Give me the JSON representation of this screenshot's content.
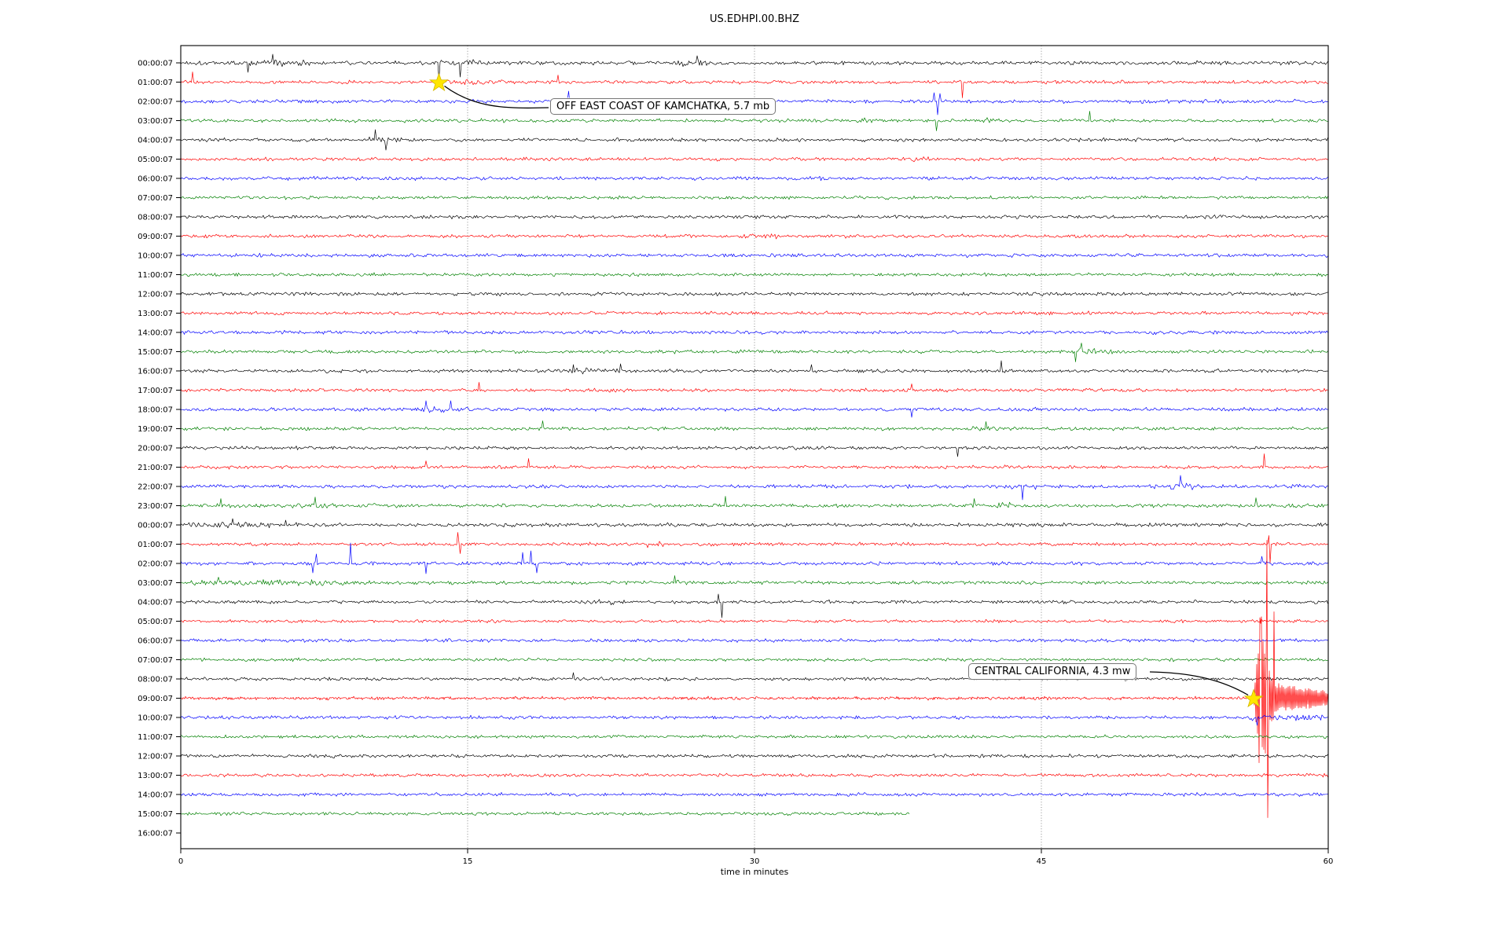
{
  "figure": {
    "title": "US.EDHPI.00.BHZ",
    "xlabel": "time in minutes"
  },
  "chart_data": {
    "type": "line",
    "subtype": "seismogram-dayplot",
    "title": "US.EDHPI.00.BHZ",
    "xlabel": "time in minutes",
    "ylabel": "",
    "xlim": [
      0,
      60
    ],
    "x_ticks": [
      0,
      15,
      30,
      45,
      60
    ],
    "grid": {
      "vertical_minutes": [
        15,
        30,
        45
      ],
      "style": "dotted",
      "color": "#6e6e6e"
    },
    "trace_color_cycle": [
      "#000000",
      "#ff0000",
      "#0000ff",
      "#008000"
    ],
    "rows": [
      {
        "label": "00:00:07",
        "color": "#000000",
        "end_minute": 60,
        "amp": 3.4,
        "bursts": [
          [
            2,
            7,
            4.2
          ],
          [
            13,
            16,
            3.8
          ],
          [
            25.5,
            28,
            4
          ]
        ],
        "spikes": [
          [
            3.5,
            -12
          ],
          [
            4.8,
            11
          ],
          [
            13.5,
            -22
          ],
          [
            14.6,
            -18
          ],
          [
            27,
            9
          ]
        ]
      },
      {
        "label": "01:00:07",
        "color": "#ff0000",
        "end_minute": 60,
        "amp": 3.0,
        "bursts": [
          [
            13.5,
            17.5,
            3.4
          ]
        ],
        "spikes": [
          [
            0.6,
            13
          ],
          [
            19.7,
            9
          ],
          [
            40.85,
            -20
          ]
        ]
      },
      {
        "label": "02:00:07",
        "color": "#0000ff",
        "end_minute": 60,
        "amp": 3.2,
        "bursts": [],
        "spikes": [
          [
            20.3,
            13
          ],
          [
            39.4,
            11
          ],
          [
            39.55,
            -17
          ],
          [
            39.7,
            10
          ]
        ]
      },
      {
        "label": "03:00:07",
        "color": "#008000",
        "end_minute": 60,
        "amp": 3.0,
        "bursts": [
          [
            34.5,
            36.5,
            3.8
          ],
          [
            41.8,
            43.8,
            4.4
          ]
        ],
        "spikes": [
          [
            39.5,
            -13
          ],
          [
            47.5,
            12
          ]
        ]
      },
      {
        "label": "04:00:07",
        "color": "#000000",
        "end_minute": 60,
        "amp": 3.0,
        "bursts": [
          [
            9.5,
            11.8,
            5.2
          ]
        ],
        "spikes": [
          [
            10.2,
            13
          ],
          [
            10.7,
            -13
          ]
        ]
      },
      {
        "label": "05:00:07",
        "color": "#ff0000",
        "end_minute": 60,
        "amp": 2.9,
        "bursts": [
          [
            38,
            39.5,
            3.4
          ]
        ],
        "spikes": []
      },
      {
        "label": "06:00:07",
        "color": "#0000ff",
        "end_minute": 60,
        "amp": 3.1,
        "bursts": [],
        "spikes": []
      },
      {
        "label": "07:00:07",
        "color": "#008000",
        "end_minute": 60,
        "amp": 2.9,
        "bursts": [],
        "spikes": []
      },
      {
        "label": "08:00:07",
        "color": "#000000",
        "end_minute": 60,
        "amp": 3.0,
        "bursts": [],
        "spikes": []
      },
      {
        "label": "09:00:07",
        "color": "#ff0000",
        "end_minute": 60,
        "amp": 2.9,
        "bursts": [
          [
            29,
            31.5,
            3.3
          ]
        ],
        "spikes": []
      },
      {
        "label": "10:00:07",
        "color": "#0000ff",
        "end_minute": 60,
        "amp": 3.1,
        "bursts": [],
        "spikes": []
      },
      {
        "label": "11:00:07",
        "color": "#008000",
        "end_minute": 60,
        "amp": 2.8,
        "bursts": [],
        "spikes": []
      },
      {
        "label": "12:00:07",
        "color": "#000000",
        "end_minute": 60,
        "amp": 2.9,
        "bursts": [],
        "spikes": []
      },
      {
        "label": "13:00:07",
        "color": "#ff0000",
        "end_minute": 60,
        "amp": 2.9,
        "bursts": [],
        "spikes": []
      },
      {
        "label": "14:00:07",
        "color": "#0000ff",
        "end_minute": 60,
        "amp": 3.0,
        "bursts": [],
        "spikes": []
      },
      {
        "label": "15:00:07",
        "color": "#008000",
        "end_minute": 60,
        "amp": 2.9,
        "bursts": [
          [
            46.3,
            49,
            5.6
          ]
        ],
        "spikes": [
          [
            46.8,
            -13
          ],
          [
            47.1,
            11
          ]
        ]
      },
      {
        "label": "16:00:07",
        "color": "#000000",
        "end_minute": 60,
        "amp": 3.0,
        "bursts": [
          [
            20,
            24,
            3.6
          ]
        ],
        "spikes": [
          [
            20.5,
            8
          ],
          [
            23,
            9
          ],
          [
            33,
            8
          ],
          [
            42.9,
            13
          ]
        ]
      },
      {
        "label": "17:00:07",
        "color": "#ff0000",
        "end_minute": 60,
        "amp": 2.9,
        "bursts": [],
        "spikes": [
          [
            15.6,
            10
          ],
          [
            38.2,
            8
          ]
        ]
      },
      {
        "label": "18:00:07",
        "color": "#0000ff",
        "end_minute": 60,
        "amp": 3.1,
        "bursts": [
          [
            12,
            15.5,
            4.6
          ]
        ],
        "spikes": [
          [
            12.8,
            11
          ],
          [
            14.1,
            11
          ],
          [
            38.2,
            -10
          ]
        ]
      },
      {
        "label": "19:00:07",
        "color": "#008000",
        "end_minute": 60,
        "amp": 2.9,
        "bursts": [
          [
            41,
            44,
            3.5
          ]
        ],
        "spikes": [
          [
            18.9,
            10
          ],
          [
            42.1,
            9
          ]
        ]
      },
      {
        "label": "20:00:07",
        "color": "#000000",
        "end_minute": 60,
        "amp": 2.9,
        "bursts": [],
        "spikes": [
          [
            40.6,
            -11
          ]
        ]
      },
      {
        "label": "21:00:07",
        "color": "#ff0000",
        "end_minute": 60,
        "amp": 2.9,
        "bursts": [],
        "spikes": [
          [
            12.8,
            8
          ],
          [
            18.2,
            11
          ],
          [
            56.63,
            17
          ]
        ]
      },
      {
        "label": "22:00:07",
        "color": "#0000ff",
        "end_minute": 60,
        "amp": 3.1,
        "bursts": [
          [
            43,
            45,
            3.8
          ],
          [
            51.5,
            53.5,
            5.4
          ],
          [
            57.8,
            58.8,
            4.5
          ]
        ],
        "spikes": [
          [
            44,
            -17
          ],
          [
            52.3,
            14
          ]
        ]
      },
      {
        "label": "23:00:07",
        "color": "#008000",
        "end_minute": 60,
        "amp": 3.1,
        "bursts": [
          [
            5.5,
            8,
            3.8
          ],
          [
            41,
            44,
            4
          ]
        ],
        "spikes": [
          [
            2.1,
            9
          ],
          [
            7,
            11
          ],
          [
            28.5,
            12
          ],
          [
            41.5,
            9
          ],
          [
            56.2,
            10
          ]
        ]
      },
      {
        "label": "00:00:07",
        "color": "#000000",
        "end_minute": 60,
        "amp": 3.3,
        "bursts": [
          [
            0,
            5,
            4.2
          ]
        ],
        "spikes": [
          [
            2.7,
            8
          ],
          [
            5.5,
            6
          ]
        ]
      },
      {
        "label": "01:00:07",
        "color": "#ff0000",
        "end_minute": 60,
        "amp": 2.9,
        "bursts": [
          [
            24,
            25.5,
            5
          ]
        ],
        "spikes": [
          [
            14.5,
            15
          ],
          [
            14.62,
            -12
          ],
          [
            56.9,
            11
          ],
          [
            56.95,
            -24
          ]
        ]
      },
      {
        "label": "02:00:07",
        "color": "#0000ff",
        "end_minute": 60,
        "amp": 3.1,
        "bursts": [
          [
            17.5,
            19,
            3.6
          ]
        ],
        "spikes": [
          [
            6.9,
            -12
          ],
          [
            7.1,
            12
          ],
          [
            8.9,
            26
          ],
          [
            12.8,
            -13
          ],
          [
            17.9,
            14
          ],
          [
            18.3,
            16
          ],
          [
            18.6,
            -12
          ],
          [
            56.5,
            9
          ]
        ]
      },
      {
        "label": "03:00:07",
        "color": "#008000",
        "end_minute": 60,
        "amp": 3.0,
        "bursts": [
          [
            0,
            10,
            4.4
          ],
          [
            24,
            26.5,
            3.6
          ]
        ],
        "spikes": [
          [
            2,
            7
          ],
          [
            25.8,
            9
          ]
        ]
      },
      {
        "label": "04:00:07",
        "color": "#000000",
        "end_minute": 60,
        "amp": 2.9,
        "bursts": [
          [
            21,
            23,
            4.2
          ]
        ],
        "spikes": [
          [
            28.1,
            10
          ],
          [
            28.3,
            -20
          ]
        ]
      },
      {
        "label": "05:00:07",
        "color": "#ff0000",
        "end_minute": 60,
        "amp": 2.7,
        "bursts": [],
        "spikes": []
      },
      {
        "label": "06:00:07",
        "color": "#0000ff",
        "end_minute": 60,
        "amp": 2.9,
        "bursts": [],
        "spikes": []
      },
      {
        "label": "07:00:07",
        "color": "#008000",
        "end_minute": 60,
        "amp": 2.7,
        "bursts": [],
        "spikes": []
      },
      {
        "label": "08:00:07",
        "color": "#000000",
        "end_minute": 60,
        "amp": 2.9,
        "bursts": [],
        "spikes": [
          [
            20.5,
            8
          ]
        ]
      },
      {
        "label": "09:00:07",
        "color": "#ff0000",
        "end_minute": 60,
        "amp": 2.7,
        "bursts": [],
        "spikes": [],
        "quake": {
          "onset_minute": 56.1,
          "rise_end_minute": 56.45,
          "peak_amp": 120,
          "decay_tau_minutes": 0.5,
          "needles": [
            [
              56.45,
              95
            ],
            [
              56.8,
              201
            ],
            [
              56.84,
              -152
            ],
            [
              57.15,
              110
            ]
          ]
        }
      },
      {
        "label": "10:00:07",
        "color": "#0000ff",
        "end_minute": 60,
        "amp": 3.0,
        "bursts": [
          [
            55.5,
            60,
            4.4
          ]
        ],
        "spikes": [
          [
            56.3,
            -10
          ]
        ]
      },
      {
        "label": "11:00:07",
        "color": "#008000",
        "end_minute": 60,
        "amp": 2.7,
        "bursts": [],
        "spikes": []
      },
      {
        "label": "12:00:07",
        "color": "#000000",
        "end_minute": 60,
        "amp": 2.9,
        "bursts": [],
        "spikes": []
      },
      {
        "label": "13:00:07",
        "color": "#ff0000",
        "end_minute": 60,
        "amp": 2.9,
        "bursts": [],
        "spikes": []
      },
      {
        "label": "14:00:07",
        "color": "#0000ff",
        "end_minute": 60,
        "amp": 2.9,
        "bursts": [],
        "spikes": []
      },
      {
        "label": "15:00:07",
        "color": "#008000",
        "end_minute": 38.1,
        "amp": 2.9,
        "bursts": [],
        "spikes": []
      },
      {
        "label": "16:00:07",
        "color": "#000000",
        "end_minute": 0,
        "amp": 0,
        "bursts": [],
        "spikes": []
      }
    ],
    "events": [
      {
        "label": "OFF EAST COAST OF KAMCHATKA, 5.7 mb",
        "row": 1,
        "minute": 13.5,
        "marker": "yellow-star"
      },
      {
        "label": "CENTRAL CALIFORNIA, 4.3 mw",
        "row": 33,
        "minute": 56.1,
        "marker": "yellow-star"
      }
    ],
    "marker_color": "#ffe600",
    "legend": null
  }
}
